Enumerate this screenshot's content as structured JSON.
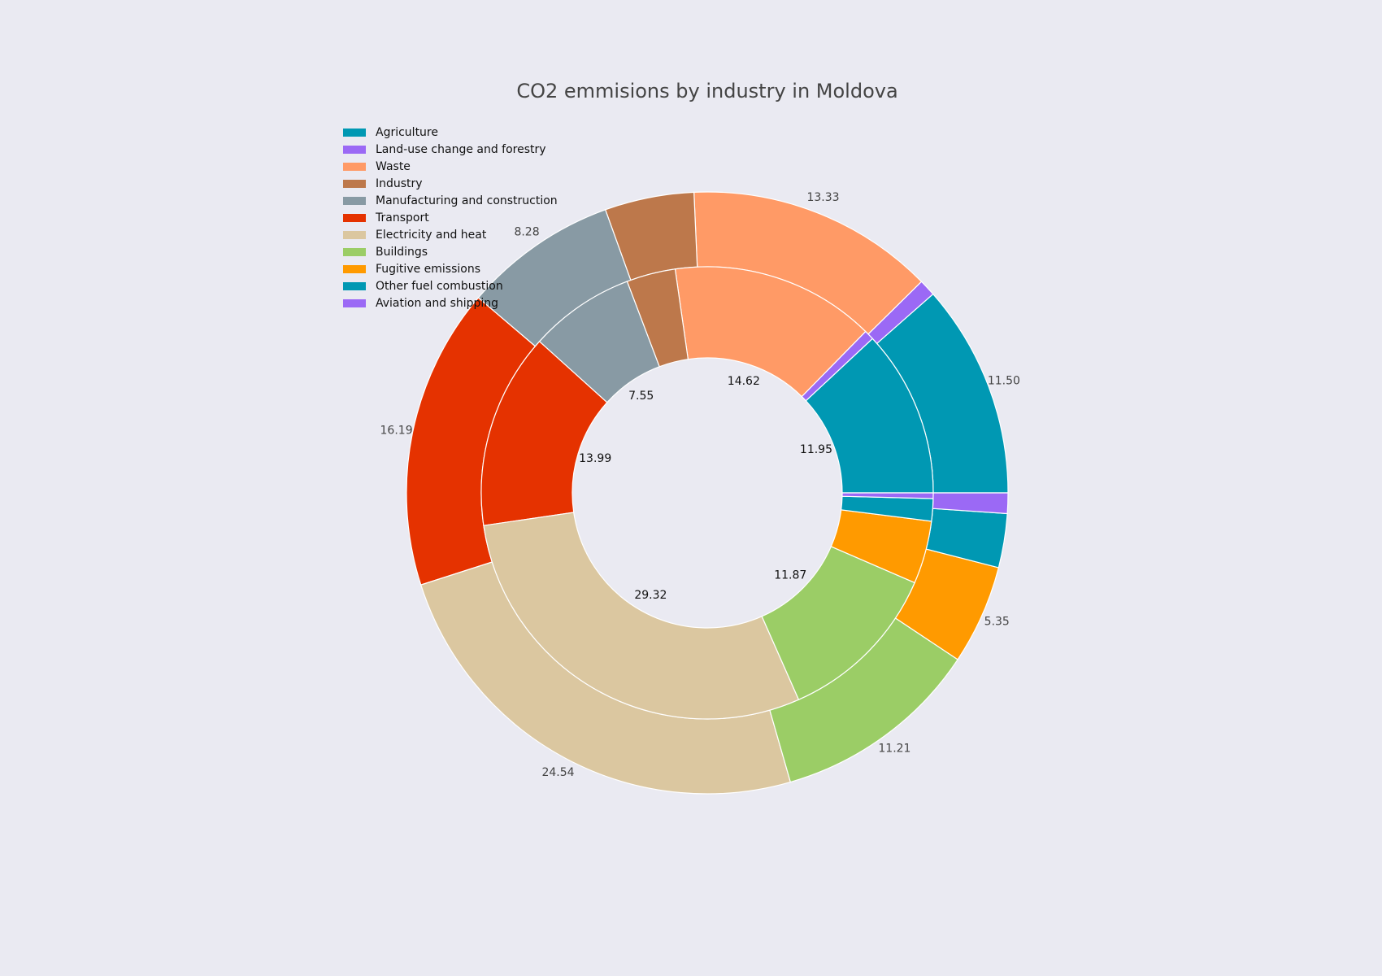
{
  "chart_data": {
    "type": "pie",
    "title": "CO2 emmisions by industry in Moldova",
    "legend_position": "top-left",
    "categories": [
      "Agriculture",
      "Land-use change and forestry",
      "Waste",
      "Industry",
      "Manufacturing and construction",
      "Transport",
      "Electricity and heat",
      "Buildings",
      "Fugitive emissions",
      "Other fuel combustion",
      "Aviation and shipping"
    ],
    "colors": [
      "#0098b3",
      "#9b69f5",
      "#ff9a66",
      "#bd784b",
      "#889aa4",
      "#e53200",
      "#dbc7a0",
      "#9bcd66",
      "#ff9a00",
      "#0098b3",
      "#9b69f5"
    ],
    "series": [
      {
        "ring": "outer",
        "values": [
          11.5,
          0.9,
          13.33,
          4.8,
          8.28,
          16.19,
          24.54,
          11.21,
          5.35,
          2.9,
          1.1
        ],
        "labels": [
          "11.50",
          "",
          "13.33",
          "",
          "8.28",
          "16.19",
          "24.54",
          "11.21",
          "5.35",
          "",
          ""
        ]
      },
      {
        "ring": "inner",
        "values": [
          11.95,
          0.7,
          14.62,
          3.5,
          7.55,
          13.99,
          29.32,
          11.87,
          4.5,
          1.6,
          0.4
        ],
        "labels": [
          "11.95",
          "",
          "14.62",
          "",
          "7.55",
          "13.99",
          "29.32",
          "11.87",
          "",
          "",
          ""
        ]
      }
    ]
  }
}
